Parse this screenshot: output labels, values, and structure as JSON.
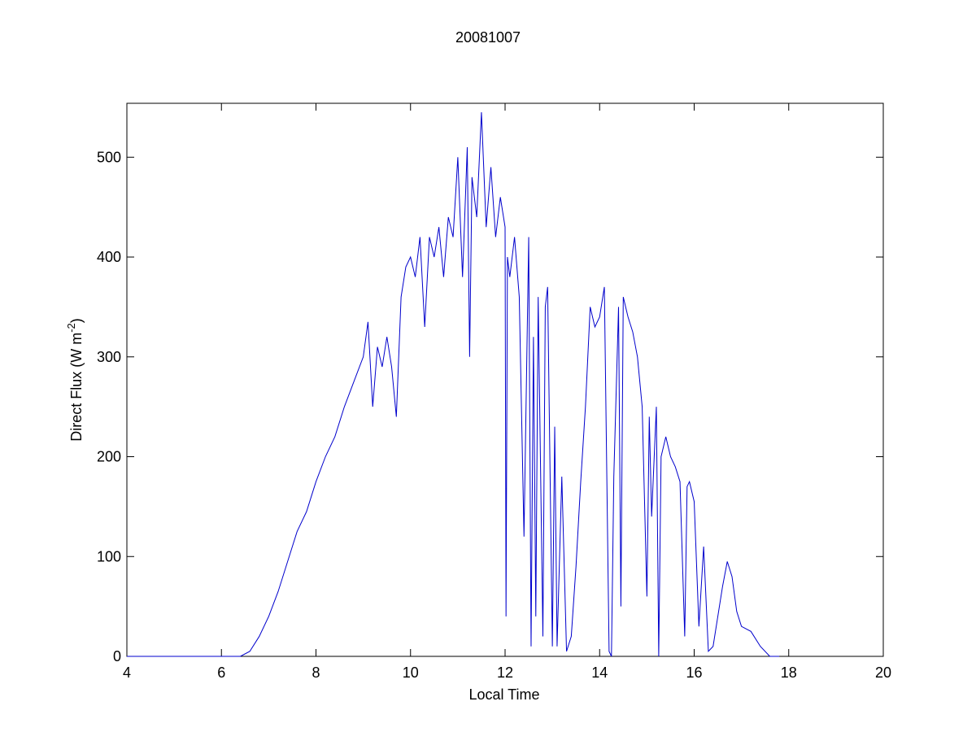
{
  "chart_data": {
    "type": "line",
    "title": "20081007",
    "xlabel": "Local Time",
    "ylabel": [
      "Direct Flux (W m",
      "-2",
      ")"
    ],
    "xlim": [
      4,
      20
    ],
    "xticks": [
      4,
      6,
      8,
      10,
      12,
      14,
      16,
      18,
      20
    ],
    "ylim": [
      0,
      554
    ],
    "yticks": [
      0,
      100,
      200,
      300,
      400,
      500
    ],
    "grid": false,
    "series": [
      {
        "color": "#0000cc",
        "x": [
          4.0,
          5.0,
          6.0,
          6.4,
          6.6,
          6.8,
          7.0,
          7.2,
          7.4,
          7.6,
          7.8,
          8.0,
          8.2,
          8.4,
          8.6,
          8.8,
          9.0,
          9.1,
          9.2,
          9.3,
          9.4,
          9.5,
          9.6,
          9.7,
          9.8,
          9.9,
          10.0,
          10.1,
          10.2,
          10.3,
          10.4,
          10.5,
          10.6,
          10.7,
          10.8,
          10.9,
          11.0,
          11.1,
          11.2,
          11.25,
          11.3,
          11.4,
          11.5,
          11.6,
          11.7,
          11.8,
          11.9,
          12.0,
          12.02,
          12.05,
          12.1,
          12.2,
          12.3,
          12.4,
          12.5,
          12.55,
          12.6,
          12.65,
          12.7,
          12.8,
          12.85,
          12.9,
          13.0,
          13.05,
          13.1,
          13.2,
          13.3,
          13.4,
          13.5,
          13.6,
          13.7,
          13.8,
          13.9,
          14.0,
          14.1,
          14.2,
          14.25,
          14.3,
          14.4,
          14.45,
          14.5,
          14.6,
          14.7,
          14.8,
          14.9,
          15.0,
          15.05,
          15.1,
          15.2,
          15.25,
          15.3,
          15.4,
          15.5,
          15.6,
          15.7,
          15.8,
          15.85,
          15.9,
          16.0,
          16.1,
          16.2,
          16.3,
          16.4,
          16.5,
          16.6,
          16.7,
          16.8,
          16.9,
          17.0,
          17.2,
          17.4,
          17.6,
          17.8
        ],
        "values": [
          0,
          0,
          0,
          0,
          5,
          20,
          40,
          65,
          95,
          125,
          145,
          175,
          200,
          220,
          250,
          275,
          300,
          335,
          250,
          310,
          290,
          320,
          290,
          240,
          360,
          390,
          400,
          380,
          420,
          330,
          420,
          400,
          430,
          380,
          440,
          420,
          500,
          380,
          510,
          300,
          480,
          440,
          545,
          430,
          490,
          420,
          460,
          430,
          40,
          400,
          380,
          420,
          360,
          120,
          420,
          10,
          320,
          40,
          360,
          20,
          350,
          370,
          10,
          230,
          10,
          180,
          5,
          20,
          90,
          175,
          250,
          350,
          330,
          340,
          370,
          5,
          0,
          180,
          350,
          50,
          360,
          340,
          325,
          300,
          250,
          60,
          240,
          140,
          250,
          0,
          200,
          220,
          200,
          190,
          175,
          20,
          170,
          175,
          155,
          30,
          110,
          5,
          10,
          40,
          70,
          95,
          80,
          45,
          30,
          25,
          10,
          0,
          0
        ]
      }
    ]
  }
}
